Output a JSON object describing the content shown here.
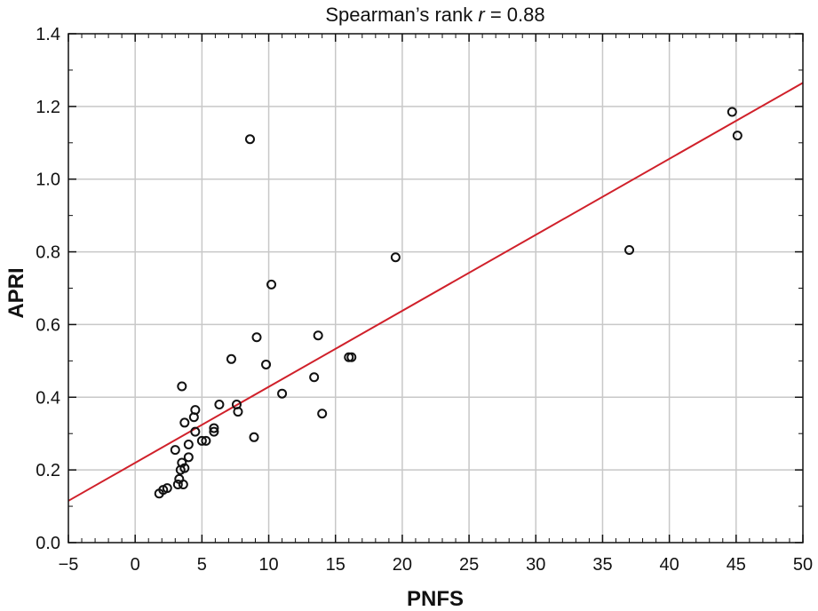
{
  "chart_data": {
    "type": "scatter",
    "title_prefix": "Spearman’s rank ",
    "title_var": "r",
    "title_suffix": " = 0.88",
    "xlabel": "PNFS",
    "ylabel": "APRI",
    "xlim": [
      -5,
      50
    ],
    "ylim": [
      0.0,
      1.4
    ],
    "x_ticks": [
      -5,
      0,
      5,
      10,
      15,
      20,
      25,
      30,
      35,
      40,
      45,
      50
    ],
    "x_tick_labels": [
      "−5",
      "0",
      "5",
      "10",
      "15",
      "20",
      "25",
      "30",
      "35",
      "40",
      "45",
      "50"
    ],
    "y_ticks": [
      0.0,
      0.2,
      0.4,
      0.6,
      0.8,
      1.0,
      1.2,
      1.4
    ],
    "y_tick_labels": [
      "0.0",
      "0.2",
      "0.4",
      "0.6",
      "0.8",
      "1.0",
      "1.2",
      "1.4"
    ],
    "grid": true,
    "points": [
      {
        "x": 1.8,
        "y": 0.135
      },
      {
        "x": 2.1,
        "y": 0.145
      },
      {
        "x": 2.4,
        "y": 0.15
      },
      {
        "x": 3.2,
        "y": 0.16
      },
      {
        "x": 3.3,
        "y": 0.175
      },
      {
        "x": 3.6,
        "y": 0.16
      },
      {
        "x": 3.4,
        "y": 0.2
      },
      {
        "x": 3.7,
        "y": 0.205
      },
      {
        "x": 3.5,
        "y": 0.22
      },
      {
        "x": 4.0,
        "y": 0.235
      },
      {
        "x": 3.0,
        "y": 0.255
      },
      {
        "x": 4.0,
        "y": 0.27
      },
      {
        "x": 5.0,
        "y": 0.28
      },
      {
        "x": 5.3,
        "y": 0.28
      },
      {
        "x": 4.5,
        "y": 0.305
      },
      {
        "x": 5.9,
        "y": 0.305
      },
      {
        "x": 5.9,
        "y": 0.315
      },
      {
        "x": 3.7,
        "y": 0.33
      },
      {
        "x": 4.4,
        "y": 0.345
      },
      {
        "x": 4.5,
        "y": 0.365
      },
      {
        "x": 3.5,
        "y": 0.43
      },
      {
        "x": 6.3,
        "y": 0.38
      },
      {
        "x": 7.6,
        "y": 0.38
      },
      {
        "x": 7.7,
        "y": 0.36
      },
      {
        "x": 8.9,
        "y": 0.29
      },
      {
        "x": 7.2,
        "y": 0.505
      },
      {
        "x": 9.1,
        "y": 0.565
      },
      {
        "x": 9.8,
        "y": 0.49
      },
      {
        "x": 11.0,
        "y": 0.41
      },
      {
        "x": 10.2,
        "y": 0.71
      },
      {
        "x": 8.6,
        "y": 1.11
      },
      {
        "x": 13.4,
        "y": 0.455
      },
      {
        "x": 13.7,
        "y": 0.57
      },
      {
        "x": 14.0,
        "y": 0.355
      },
      {
        "x": 16.0,
        "y": 0.51
      },
      {
        "x": 16.2,
        "y": 0.51
      },
      {
        "x": 19.5,
        "y": 0.785
      },
      {
        "x": 37.0,
        "y": 0.805
      },
      {
        "x": 44.7,
        "y": 1.185
      },
      {
        "x": 45.1,
        "y": 1.12
      }
    ],
    "fit_line": {
      "x": [
        -5,
        50
      ],
      "y": [
        0.115,
        1.265
      ],
      "color": "#d0202a"
    },
    "marker_color": "#111111",
    "grid_color": "#c8c8c8"
  }
}
